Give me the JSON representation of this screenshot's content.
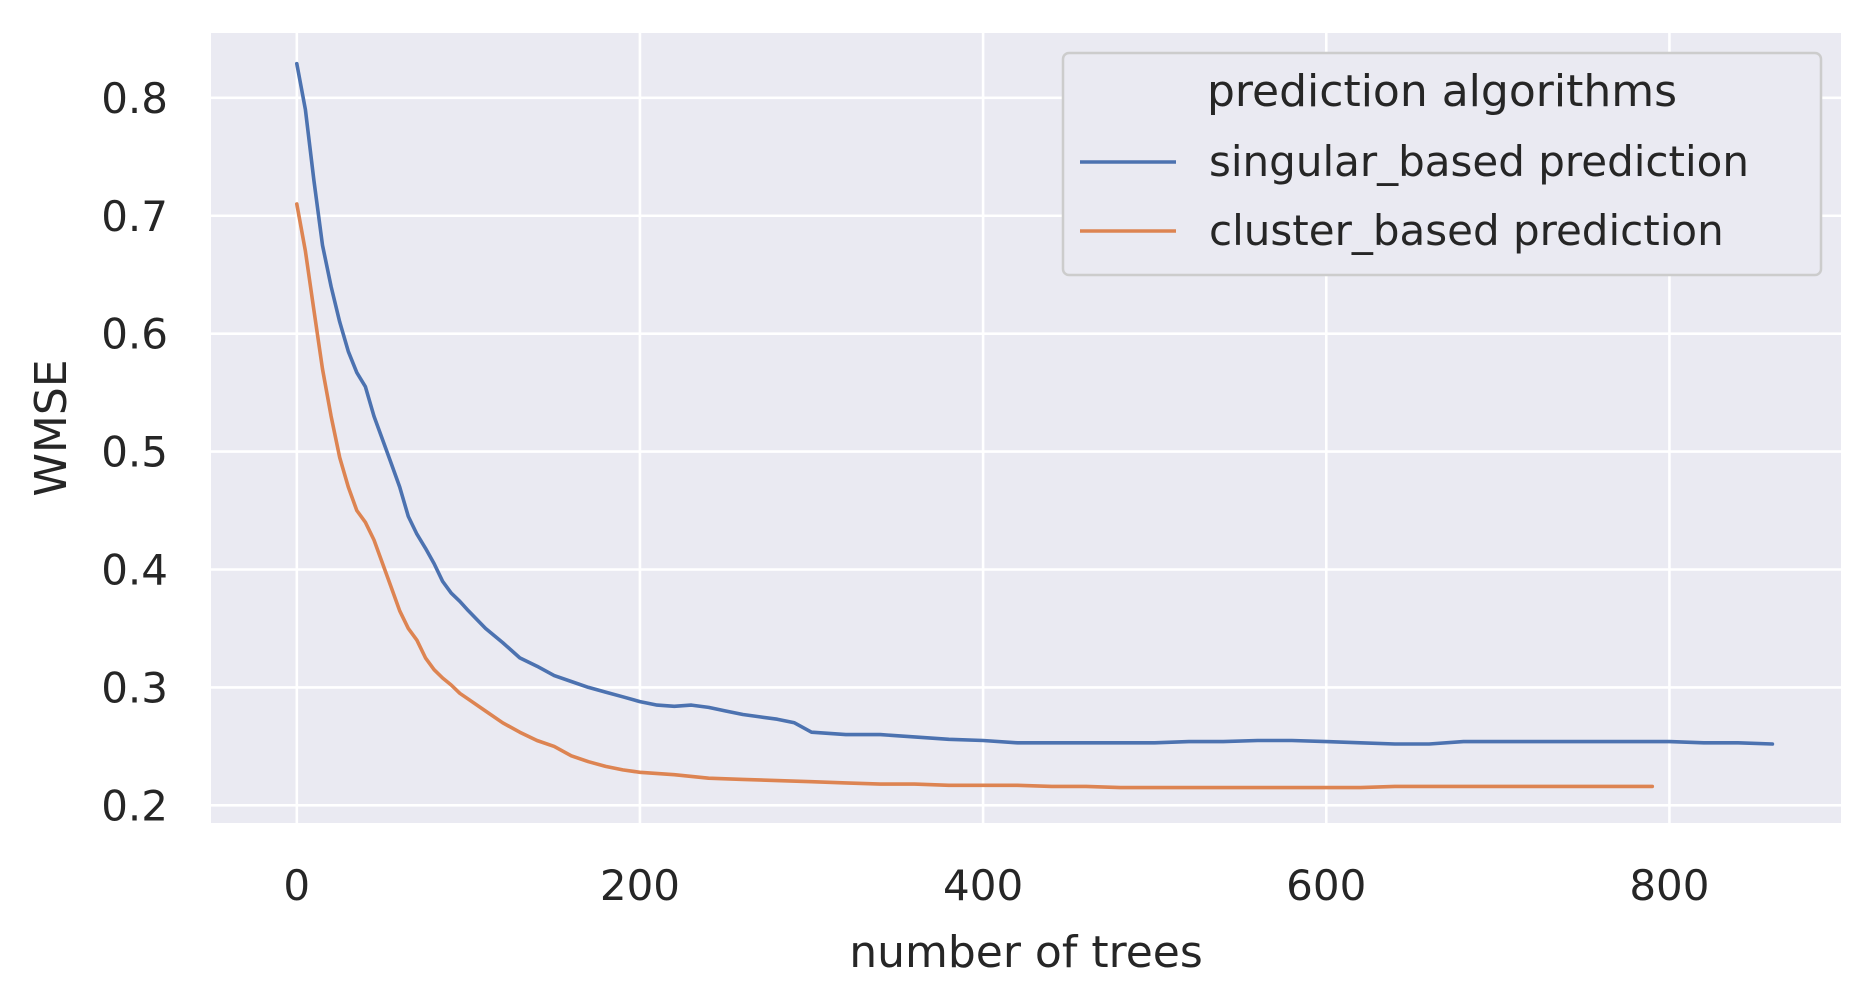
{
  "chart_data": {
    "type": "line",
    "xlabel": "number of trees",
    "ylabel": "WMSE",
    "xlim": [
      -50,
      900
    ],
    "ylim": [
      0.185,
      0.855
    ],
    "xticks": [
      0,
      200,
      400,
      600,
      800
    ],
    "xtick_labels": [
      "0",
      "200",
      "400",
      "600",
      "800"
    ],
    "yticks": [
      0.2,
      0.3,
      0.4,
      0.5,
      0.6,
      0.7,
      0.8
    ],
    "ytick_labels": [
      "0.2",
      "0.3",
      "0.4",
      "0.5",
      "0.6",
      "0.7",
      "0.8"
    ],
    "grid": true,
    "legend": {
      "title": "prediction algorithms",
      "placement": "upper right"
    },
    "series": [
      {
        "name": "singular_based prediction",
        "color": "#4c72b0",
        "x": [
          0,
          5,
          10,
          15,
          20,
          25,
          30,
          35,
          40,
          45,
          50,
          55,
          60,
          65,
          70,
          75,
          80,
          85,
          90,
          95,
          100,
          110,
          120,
          130,
          140,
          150,
          160,
          170,
          180,
          190,
          200,
          210,
          220,
          230,
          240,
          250,
          260,
          270,
          280,
          290,
          300,
          320,
          340,
          360,
          380,
          400,
          420,
          440,
          460,
          480,
          500,
          520,
          540,
          560,
          580,
          600,
          620,
          640,
          660,
          680,
          700,
          720,
          740,
          760,
          780,
          800,
          820,
          840,
          860
        ],
        "y": [
          0.829,
          0.79,
          0.73,
          0.675,
          0.64,
          0.61,
          0.585,
          0.567,
          0.555,
          0.53,
          0.51,
          0.49,
          0.47,
          0.445,
          0.43,
          0.418,
          0.405,
          0.39,
          0.38,
          0.373,
          0.365,
          0.35,
          0.338,
          0.325,
          0.318,
          0.31,
          0.305,
          0.3,
          0.296,
          0.292,
          0.288,
          0.285,
          0.284,
          0.285,
          0.283,
          0.28,
          0.277,
          0.275,
          0.273,
          0.27,
          0.262,
          0.26,
          0.26,
          0.258,
          0.256,
          0.255,
          0.253,
          0.253,
          0.253,
          0.253,
          0.253,
          0.254,
          0.254,
          0.255,
          0.255,
          0.254,
          0.253,
          0.252,
          0.252,
          0.254,
          0.254,
          0.254,
          0.254,
          0.254,
          0.254,
          0.254,
          0.253,
          0.253,
          0.252
        ]
      },
      {
        "name": "cluster_based prediction",
        "color": "#dd8452",
        "x": [
          0,
          5,
          10,
          15,
          20,
          25,
          30,
          35,
          40,
          45,
          50,
          55,
          60,
          65,
          70,
          75,
          80,
          85,
          90,
          95,
          100,
          110,
          120,
          130,
          140,
          150,
          160,
          170,
          180,
          190,
          200,
          220,
          240,
          260,
          280,
          300,
          320,
          340,
          360,
          380,
          400,
          420,
          440,
          460,
          480,
          500,
          520,
          540,
          560,
          580,
          600,
          620,
          640,
          660,
          680,
          700,
          720,
          740,
          760,
          780,
          790
        ],
        "y": [
          0.71,
          0.67,
          0.62,
          0.57,
          0.53,
          0.495,
          0.47,
          0.45,
          0.44,
          0.425,
          0.405,
          0.385,
          0.365,
          0.35,
          0.34,
          0.325,
          0.315,
          0.308,
          0.302,
          0.295,
          0.29,
          0.28,
          0.27,
          0.262,
          0.255,
          0.25,
          0.242,
          0.237,
          0.233,
          0.23,
          0.228,
          0.226,
          0.223,
          0.222,
          0.221,
          0.22,
          0.219,
          0.218,
          0.218,
          0.217,
          0.217,
          0.217,
          0.216,
          0.216,
          0.215,
          0.215,
          0.215,
          0.215,
          0.215,
          0.215,
          0.215,
          0.215,
          0.216,
          0.216,
          0.216,
          0.216,
          0.216,
          0.216,
          0.216,
          0.216,
          0.216
        ]
      }
    ]
  }
}
